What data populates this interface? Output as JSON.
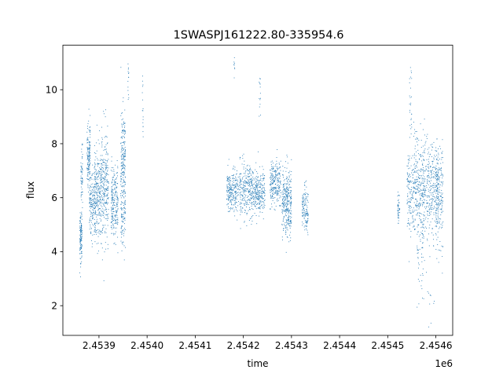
{
  "chart_data": {
    "type": "scatter",
    "title": "1SWASPJ161222.80-335954.6",
    "xlabel": "time",
    "ylabel": "flux",
    "x_offset_label": "1e6",
    "xlim": [
      2453825,
      2454635
    ],
    "ylim": [
      0.9,
      11.65
    ],
    "x_ticks": [
      2453900,
      2454000,
      2454100,
      2454200,
      2454300,
      2454400,
      2454500,
      2454600
    ],
    "x_tick_labels": [
      "2.4539",
      "2.4540",
      "2.4541",
      "2.4542",
      "2.4543",
      "2.4544",
      "2.4545",
      "2.4546"
    ],
    "y_ticks": [
      2,
      4,
      6,
      8,
      10
    ],
    "y_tick_labels": [
      "2",
      "4",
      "6",
      "8",
      "10"
    ],
    "grid": false,
    "marker_color": "#1f77b4",
    "clusters": [
      {
        "x_start": 2453860,
        "x_end": 2453865,
        "y_mean": 4.6,
        "y_spread": 0.5,
        "count": 120
      },
      {
        "x_start": 2453862,
        "x_end": 2453866,
        "y_mean": 6.8,
        "y_spread": 0.5,
        "count": 60
      },
      {
        "x_start": 2453875,
        "x_end": 2453882,
        "y_mean": 7.6,
        "y_spread": 0.6,
        "count": 140
      },
      {
        "x_start": 2453880,
        "x_end": 2453892,
        "y_mean": 5.8,
        "y_spread": 0.6,
        "count": 150
      },
      {
        "x_start": 2453890,
        "x_end": 2453905,
        "y_mean": 6.2,
        "y_spread": 0.9,
        "count": 260
      },
      {
        "x_start": 2453905,
        "x_end": 2453920,
        "y_mean": 6.4,
        "y_spread": 0.9,
        "count": 240
      },
      {
        "x_start": 2453925,
        "x_end": 2453940,
        "y_mean": 5.8,
        "y_spread": 0.7,
        "count": 220
      },
      {
        "x_start": 2453945,
        "x_end": 2453955,
        "y_mean": 7.4,
        "y_spread": 1.0,
        "count": 200
      },
      {
        "x_start": 2453945,
        "x_end": 2453955,
        "y_mean": 5.3,
        "y_spread": 0.6,
        "count": 80
      },
      {
        "x_start": 2453960,
        "x_end": 2453962,
        "y_mean": 10.4,
        "y_spread": 0.5,
        "count": 14
      },
      {
        "x_start": 2453990,
        "x_end": 2453992,
        "y_mean": 9.3,
        "y_spread": 0.6,
        "count": 16
      },
      {
        "x_start": 2454165,
        "x_end": 2454190,
        "y_mean": 6.3,
        "y_spread": 0.35,
        "count": 230
      },
      {
        "x_start": 2454192,
        "x_end": 2454220,
        "y_mean": 6.3,
        "y_spread": 0.5,
        "count": 280
      },
      {
        "x_start": 2454220,
        "x_end": 2454245,
        "y_mean": 6.2,
        "y_spread": 0.4,
        "count": 240
      },
      {
        "x_start": 2454255,
        "x_end": 2454278,
        "y_mean": 6.5,
        "y_spread": 0.45,
        "count": 230
      },
      {
        "x_start": 2454280,
        "x_end": 2454300,
        "y_mean": 6.0,
        "y_spread": 0.55,
        "count": 230
      },
      {
        "x_start": 2454280,
        "x_end": 2454300,
        "y_mean": 5.3,
        "y_spread": 0.5,
        "count": 80
      },
      {
        "x_start": 2454322,
        "x_end": 2454335,
        "y_mean": 5.6,
        "y_spread": 0.45,
        "count": 130
      },
      {
        "x_start": 2454180,
        "x_end": 2454182,
        "y_mean": 10.9,
        "y_spread": 0.3,
        "count": 8
      },
      {
        "x_start": 2454232,
        "x_end": 2454236,
        "y_mean": 10.0,
        "y_spread": 0.6,
        "count": 14
      },
      {
        "x_start": 2454540,
        "x_end": 2454555,
        "y_mean": 6.2,
        "y_spread": 0.8,
        "count": 150
      },
      {
        "x_start": 2454555,
        "x_end": 2454580,
        "y_mean": 6.4,
        "y_spread": 0.9,
        "count": 280
      },
      {
        "x_start": 2454560,
        "x_end": 2454575,
        "y_mean": 4.3,
        "y_spread": 0.8,
        "count": 60
      },
      {
        "x_start": 2454580,
        "x_end": 2454605,
        "y_mean": 6.3,
        "y_spread": 0.9,
        "count": 260
      },
      {
        "x_start": 2454600,
        "x_end": 2454615,
        "y_mean": 6.0,
        "y_spread": 0.9,
        "count": 180
      },
      {
        "x_start": 2454520,
        "x_end": 2454525,
        "y_mean": 5.6,
        "y_spread": 0.3,
        "count": 40
      },
      {
        "x_start": 2454545,
        "x_end": 2454550,
        "y_mean": 9.5,
        "y_spread": 1.0,
        "count": 24
      },
      {
        "x_start": 2454560,
        "x_end": 2454600,
        "y_mean": 2.3,
        "y_spread": 0.6,
        "count": 14
      }
    ]
  }
}
